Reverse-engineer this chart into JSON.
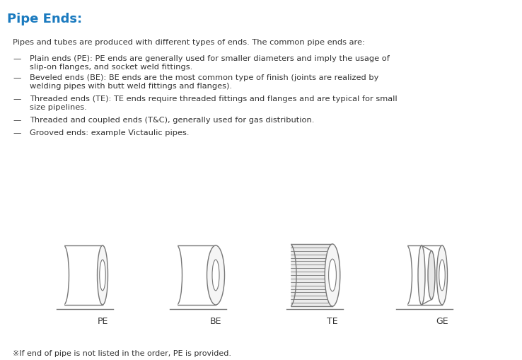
{
  "title": "Pipe Ends:",
  "title_color": "#1a7abf",
  "bg_color": "#ffffff",
  "body_text": "Pipes and tubes are produced with different types of ends. The common pipe ends are:",
  "bullet_dashes": [
    "—",
    "—",
    "—",
    "—",
    "—"
  ],
  "bullet_texts": [
    "Plain ends (PE): PE ends are generally used for smaller diameters and imply the usage of\nslip-on flanges, and socket weld fittings.",
    "Beveled ends (BE): BE ends are the most common type of finish (joints are realized by\nwelding pipes with butt weld fittings and flanges).",
    "Threaded ends (TE): TE ends require threaded fittings and flanges and are typical for small\nsize pipelines.",
    "Threaded and coupled ends (T&C), generally used for gas distribution.",
    "Grooved ends: example Victaulic pipes."
  ],
  "labels": [
    "PE",
    "BE",
    "TE",
    "GE"
  ],
  "footnote": "※If end of pipe is not listed in the order, PE is provided.",
  "text_color": "#333333",
  "line_color": "#777777",
  "face_color": "#f5f5f5",
  "groove_color": "#e0e0e0"
}
